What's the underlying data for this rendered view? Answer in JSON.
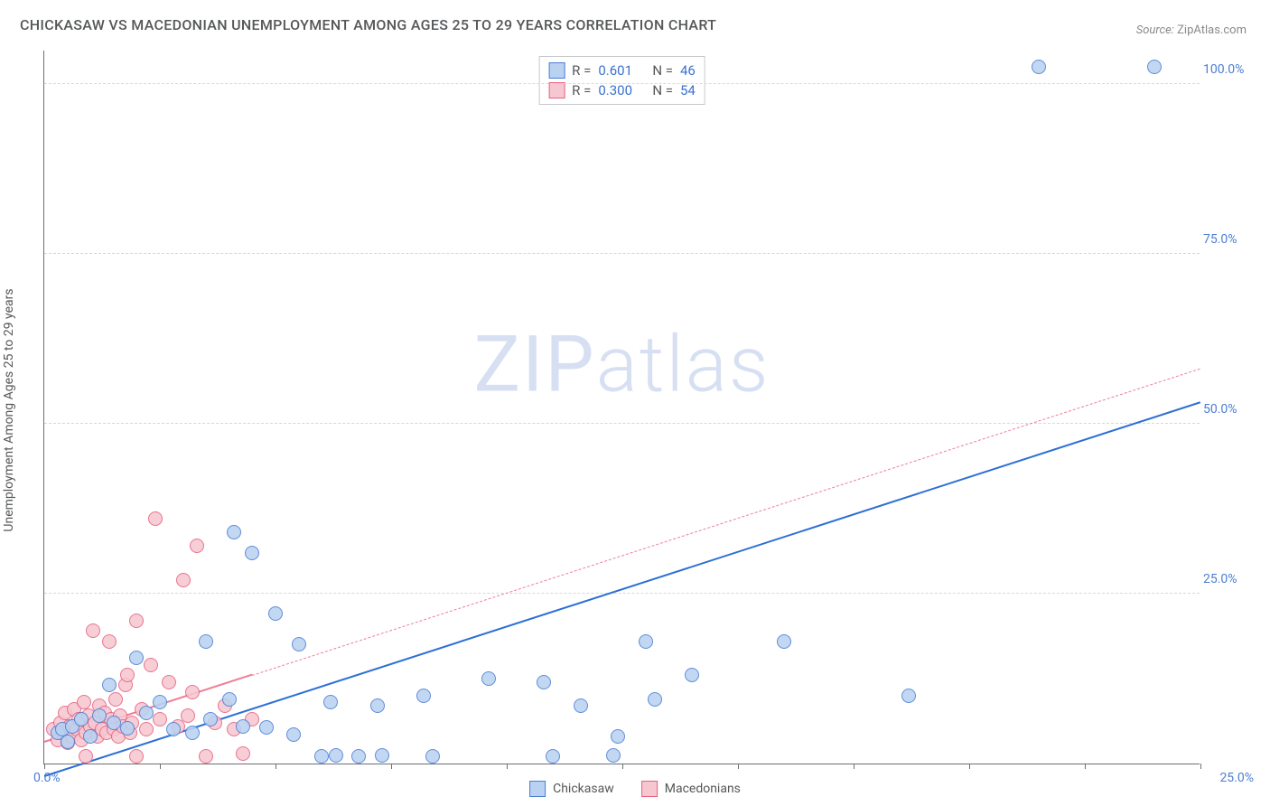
{
  "title": "CHICKASAW VS MACEDONIAN UNEMPLOYMENT AMONG AGES 25 TO 29 YEARS CORRELATION CHART",
  "source_label": "Source:",
  "source_value": "ZipAtlas.com",
  "y_axis_label": "Unemployment Among Ages 25 to 29 years",
  "watermark_a": "ZIP",
  "watermark_b": "atlas",
  "chart": {
    "type": "scatter",
    "xlim": [
      0,
      25
    ],
    "ylim": [
      0,
      105
    ],
    "y_ticks": [
      25,
      50,
      75,
      100
    ],
    "y_tick_labels": [
      "25.0%",
      "50.0%",
      "75.0%",
      "100.0%"
    ],
    "x_ticks": [
      0,
      2.5,
      5,
      7.5,
      10,
      12.5,
      15,
      17.5,
      20,
      22.5,
      25
    ],
    "x_zero_label": "0.0%",
    "x_max_label": "25.0%",
    "background_color": "#ffffff",
    "grid_color": "#d6d8da",
    "axis_color": "#6c6f73",
    "tick_label_color": "#4b7ed4",
    "point_radius": 8,
    "series": [
      {
        "name": "Chickasaw",
        "fill": "#b9d2f1",
        "stroke": "#4b7ed4",
        "line_color": "#2d6fd6",
        "line_style": "solid",
        "R": "0.601",
        "N": "46",
        "trend": {
          "x0": 0,
          "y0": -2,
          "x1": 25,
          "y1": 53
        },
        "trend_solid_extent": {
          "x0": 0,
          "x1": 25
        },
        "points": [
          [
            0.3,
            4.5
          ],
          [
            0.4,
            5.0
          ],
          [
            0.5,
            3.2
          ],
          [
            0.6,
            5.5
          ],
          [
            0.8,
            6.5
          ],
          [
            1.0,
            4.0
          ],
          [
            1.2,
            7.0
          ],
          [
            1.4,
            11.5
          ],
          [
            1.5,
            6.0
          ],
          [
            1.8,
            5.2
          ],
          [
            2.0,
            15.5
          ],
          [
            2.2,
            7.5
          ],
          [
            2.5,
            9.0
          ],
          [
            2.8,
            5.0
          ],
          [
            3.2,
            4.5
          ],
          [
            3.5,
            18.0
          ],
          [
            3.6,
            6.5
          ],
          [
            4.0,
            9.5
          ],
          [
            4.1,
            34.0
          ],
          [
            4.3,
            5.5
          ],
          [
            4.5,
            31.0
          ],
          [
            4.8,
            5.3
          ],
          [
            5.0,
            22.0
          ],
          [
            5.4,
            4.2
          ],
          [
            5.5,
            17.5
          ],
          [
            6.0,
            1.0
          ],
          [
            6.2,
            9.0
          ],
          [
            6.3,
            1.2
          ],
          [
            6.8,
            1.0
          ],
          [
            7.2,
            8.5
          ],
          [
            7.3,
            1.2
          ],
          [
            8.2,
            10.0
          ],
          [
            8.4,
            1.0
          ],
          [
            9.6,
            12.5
          ],
          [
            10.8,
            12.0
          ],
          [
            11.0,
            1.0
          ],
          [
            11.6,
            8.5
          ],
          [
            12.3,
            1.2
          ],
          [
            12.4,
            4.0
          ],
          [
            13.0,
            18.0
          ],
          [
            13.2,
            9.5
          ],
          [
            14.0,
            13.0
          ],
          [
            16.0,
            18.0
          ],
          [
            18.7,
            10.0
          ],
          [
            21.5,
            102.5
          ],
          [
            24.0,
            102.5
          ]
        ]
      },
      {
        "name": "Macedonians",
        "fill": "#f6c7d1",
        "stroke": "#e7627f",
        "line_color": "#ef7e96",
        "line_style": "dashed",
        "R": "0.300",
        "N": "54",
        "trend": {
          "x0": 0,
          "y0": 3,
          "x1": 25,
          "y1": 58
        },
        "trend_solid_extent": {
          "x0": 0,
          "x1": 4.5
        },
        "points": [
          [
            0.2,
            5.0
          ],
          [
            0.3,
            3.5
          ],
          [
            0.35,
            6.0
          ],
          [
            0.4,
            4.5
          ],
          [
            0.45,
            7.5
          ],
          [
            0.5,
            3.0
          ],
          [
            0.55,
            5.5
          ],
          [
            0.6,
            4.0
          ],
          [
            0.65,
            8.0
          ],
          [
            0.7,
            5.0
          ],
          [
            0.75,
            6.5
          ],
          [
            0.8,
            3.5
          ],
          [
            0.85,
            9.0
          ],
          [
            0.9,
            4.5
          ],
          [
            0.95,
            7.0
          ],
          [
            1.0,
            5.5
          ],
          [
            1.05,
            19.5
          ],
          [
            1.1,
            6.0
          ],
          [
            1.15,
            4.0
          ],
          [
            1.2,
            8.5
          ],
          [
            1.25,
            5.0
          ],
          [
            1.3,
            7.5
          ],
          [
            1.35,
            4.5
          ],
          [
            1.4,
            18.0
          ],
          [
            1.45,
            6.5
          ],
          [
            1.5,
            5.0
          ],
          [
            1.55,
            9.5
          ],
          [
            1.6,
            4.0
          ],
          [
            1.65,
            7.0
          ],
          [
            1.7,
            5.5
          ],
          [
            1.75,
            11.5
          ],
          [
            1.8,
            13.0
          ],
          [
            1.85,
            4.5
          ],
          [
            1.9,
            6.0
          ],
          [
            2.0,
            21.0
          ],
          [
            2.1,
            8.0
          ],
          [
            2.2,
            5.0
          ],
          [
            2.3,
            14.5
          ],
          [
            2.4,
            36.0
          ],
          [
            2.5,
            6.5
          ],
          [
            2.7,
            12.0
          ],
          [
            2.9,
            5.5
          ],
          [
            3.0,
            27.0
          ],
          [
            3.1,
            7.0
          ],
          [
            3.2,
            10.5
          ],
          [
            3.3,
            32.0
          ],
          [
            3.5,
            1.0
          ],
          [
            3.7,
            6.0
          ],
          [
            3.9,
            8.5
          ],
          [
            4.1,
            5.0
          ],
          [
            4.3,
            1.5
          ],
          [
            4.5,
            6.5
          ],
          [
            0.9,
            1.0
          ],
          [
            2.0,
            1.0
          ]
        ]
      }
    ]
  },
  "legend": {
    "r_label": "R =",
    "n_label": "N ="
  }
}
